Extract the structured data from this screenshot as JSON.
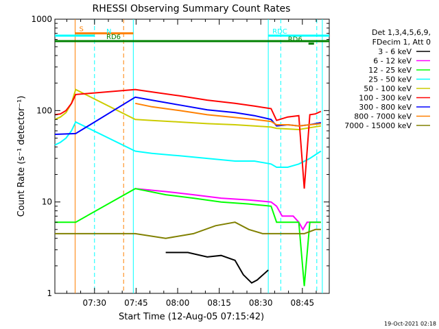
{
  "chart_data": {
    "type": "line",
    "title": "RHESSI Observing Summary Count Rates",
    "xlabel": "Start Time (12-Aug-05 07:15:42)",
    "ylabel": "Count Rate (s⁻¹ detector⁻¹)",
    "yscale": "log",
    "ylim": [
      1,
      1000
    ],
    "xlim_minutes": [
      0,
      99
    ],
    "x_tick_labels": [
      "07:30",
      "07:45",
      "08:00",
      "08:15",
      "08:30",
      "08:45"
    ],
    "x_tick_minutes": [
      14.3,
      29.3,
      44.3,
      59.3,
      74.3,
      89.3
    ],
    "y_tick_labels": [
      "1",
      "10",
      "100",
      "1000"
    ],
    "legend_header": [
      "Det 1,3,4,5,6,9,",
      "FDecim 1, Att 0"
    ],
    "legend_position": "right",
    "footer": "19-Oct-2021 02:18",
    "series": [
      {
        "name": "3 - 6 keV",
        "color": "#000000",
        "x": [
          0,
          7.5,
          28.3,
          40,
          48,
          55,
          60,
          65,
          68,
          71,
          73,
          77,
          82,
          86,
          90,
          96
        ],
        "y": [
          null,
          null,
          null,
          2.8,
          2.8,
          2.5,
          2.6,
          2.3,
          1.6,
          1.3,
          1.4,
          1.8,
          null,
          null,
          null,
          null
        ]
      },
      {
        "name": "6 - 12 keV",
        "color": "#ff00ff",
        "x": [
          29,
          40,
          50,
          60,
          70,
          78,
          80,
          82,
          86,
          88,
          89.5,
          91,
          96
        ],
        "y": [
          14,
          13,
          12,
          11,
          10.5,
          10,
          9,
          7,
          7,
          6,
          5,
          6,
          6
        ]
      },
      {
        "name": "12 - 25 keV",
        "color": "#00ff00",
        "x": [
          0,
          7.5,
          29,
          40,
          50,
          60,
          70,
          78,
          80,
          82,
          86,
          88,
          90,
          92,
          96
        ],
        "y": [
          6,
          6,
          14,
          12,
          11,
          10,
          9.5,
          9,
          6,
          6,
          6,
          6,
          1.2,
          6,
          6
        ]
      },
      {
        "name": "25 - 50 keV",
        "color": "#00ffff",
        "x": [
          0,
          2,
          4,
          6,
          7.5,
          29,
          35,
          45,
          55,
          65,
          72,
          78,
          80,
          84,
          88,
          92,
          96
        ],
        "y": [
          42,
          45,
          50,
          60,
          75,
          36,
          34,
          32,
          30,
          28,
          28,
          26,
          24,
          24,
          26,
          30,
          36
        ]
      },
      {
        "name": "50 - 100 keV",
        "color": "#cccc00",
        "x": [
          0,
          2,
          4,
          6,
          7.5,
          29,
          35,
          45,
          55,
          65,
          72,
          78,
          80,
          84,
          88,
          92,
          96
        ],
        "y": [
          80,
          85,
          95,
          120,
          170,
          80,
          78,
          75,
          72,
          70,
          68,
          66,
          64,
          63,
          62,
          65,
          68
        ]
      },
      {
        "name": "100 - 300 keV",
        "color": "#ff0000",
        "x": [
          0,
          2,
          4,
          6,
          7.5,
          29,
          35,
          45,
          55,
          65,
          72,
          78,
          80,
          84,
          88,
          90,
          92,
          94,
          96
        ],
        "y": [
          90,
          92,
          100,
          120,
          150,
          170,
          160,
          145,
          130,
          120,
          112,
          105,
          78,
          85,
          88,
          14,
          90,
          92,
          98
        ]
      },
      {
        "name": "300 - 800 keV",
        "color": "#0000ff",
        "x": [
          0,
          7.5,
          29,
          35,
          45,
          55,
          65,
          72,
          78,
          80,
          84,
          88,
          92,
          96
        ],
        "y": [
          55,
          56,
          140,
          130,
          115,
          102,
          95,
          88,
          80,
          68,
          70,
          68,
          70,
          74
        ]
      },
      {
        "name": "800 - 7000 keV",
        "color": "#ff8000",
        "x": [
          29,
          35,
          45,
          55,
          65,
          72,
          78,
          80,
          84,
          88,
          92,
          96
        ],
        "y": [
          120,
          110,
          100,
          90,
          84,
          80,
          76,
          70,
          70,
          68,
          70,
          72
        ]
      },
      {
        "name": "7000 - 15000 keV",
        "color": "#808000",
        "x": [
          0,
          7.5,
          29,
          40,
          50,
          58,
          65,
          70,
          75,
          80,
          86,
          90,
          94,
          96
        ],
        "y": [
          4.5,
          4.5,
          4.5,
          4,
          4.5,
          5.5,
          6,
          5,
          4.5,
          4.5,
          4.5,
          4.5,
          5,
          5
        ]
      }
    ],
    "flags": [
      {
        "label": "S",
        "color": "#ff8000",
        "x0": 7.3,
        "x1": 28.3,
        "y": 700
      },
      {
        "label": "N",
        "color": "#00ffff",
        "x0": 0,
        "x1": 14.3,
        "y": 660
      },
      {
        "label": "RDC",
        "color": "#00ffff",
        "x0": 77,
        "x1": 99,
        "y": 660
      },
      {
        "label": "RD6",
        "color": "#008000",
        "x0": 0,
        "x1": 99,
        "y": 575
      },
      {
        "label": "RD6",
        "color": "#008000",
        "x0": 91.5,
        "x1": 93.5,
        "y": 540
      }
    ],
    "vlines": [
      {
        "x": 7.3,
        "color": "#ff8000",
        "dashed": false
      },
      {
        "x": 14.3,
        "color": "#00ffff",
        "dashed": true
      },
      {
        "x": 24.8,
        "color": "#ff8000",
        "dashed": true
      },
      {
        "x": 28.3,
        "color": "#00ffff",
        "dashed": false
      },
      {
        "x": 77,
        "color": "#00ffff",
        "dashed": false
      },
      {
        "x": 81.5,
        "color": "#00ffff",
        "dashed": true
      },
      {
        "x": 94.5,
        "color": "#00ffff",
        "dashed": true
      },
      {
        "x": 96.5,
        "color": "#00ffff",
        "dashed": false
      }
    ]
  }
}
